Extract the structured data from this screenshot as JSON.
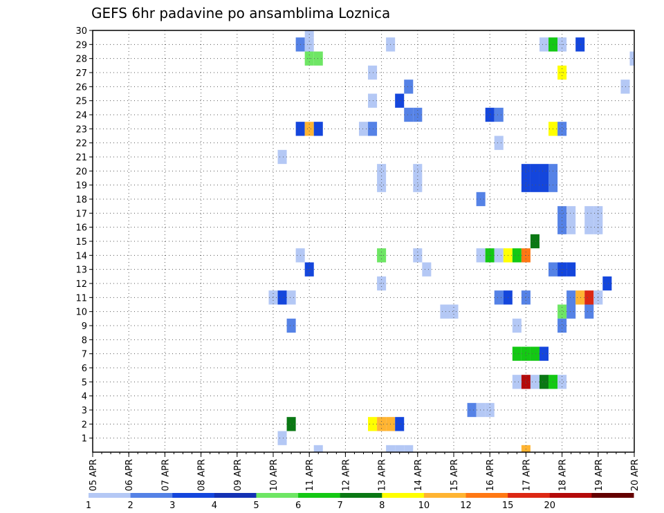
{
  "chart_data": {
    "type": "heatmap",
    "title": "GEFS 6hr padavine po ansamblima Loznica",
    "xlabel": "",
    "ylabel": "",
    "x_tick_labels": [
      "05 APR",
      "06 APR",
      "07 APR",
      "08 APR",
      "09 APR",
      "10 APR",
      "11 APR",
      "12 APR",
      "13 APR",
      "14 APR",
      "15 APR",
      "16 APR",
      "17 APR",
      "18 APR",
      "19 APR",
      "20 APR"
    ],
    "y_tick_labels": [
      "1",
      "2",
      "3",
      "4",
      "5",
      "6",
      "7",
      "8",
      "9",
      "10",
      "11",
      "12",
      "13",
      "14",
      "15",
      "16",
      "17",
      "18",
      "19",
      "20",
      "21",
      "22",
      "23",
      "24",
      "25",
      "26",
      "27",
      "28",
      "29",
      "30"
    ],
    "xlim": [
      "05 APR",
      "20 APR"
    ],
    "ylim": [
      0,
      30
    ],
    "time_step_hours": 6,
    "grid": true,
    "colorbar": {
      "placement": "bottom",
      "labels": [
        "1",
        "2",
        "3",
        "4",
        "5",
        "6",
        "7",
        "8",
        "10",
        "12",
        "15",
        "20"
      ],
      "colors": [
        "#b4c8f5",
        "#5582e6",
        "#1446dc",
        "#1432b4",
        "#6ee664",
        "#14c814",
        "#0a7814",
        "#ffff00",
        "#ffb432",
        "#ff7814",
        "#dc2814",
        "#b40a0a",
        "#640000"
      ]
    },
    "cells_ymd_h_member_value": [
      [
        11,
        0,
        30,
        1
      ],
      [
        20,
        6,
        30,
        1
      ],
      [
        10,
        18,
        29,
        2
      ],
      [
        11,
        0,
        29,
        1
      ],
      [
        13,
        6,
        29,
        1
      ],
      [
        17,
        12,
        29,
        1
      ],
      [
        17,
        18,
        29,
        6
      ],
      [
        18,
        0,
        29,
        1
      ],
      [
        18,
        12,
        29,
        3
      ],
      [
        11,
        0,
        28,
        5
      ],
      [
        11,
        6,
        28,
        5
      ],
      [
        20,
        0,
        28,
        1
      ],
      [
        20,
        18,
        28,
        1
      ],
      [
        12,
        18,
        27,
        1
      ],
      [
        18,
        0,
        27,
        8
      ],
      [
        13,
        18,
        26,
        2
      ],
      [
        19,
        18,
        26,
        1
      ],
      [
        12,
        18,
        25,
        1
      ],
      [
        13,
        12,
        25,
        3
      ],
      [
        13,
        18,
        24,
        2
      ],
      [
        14,
        0,
        24,
        2
      ],
      [
        16,
        0,
        24,
        3
      ],
      [
        16,
        6,
        24,
        2
      ],
      [
        10,
        18,
        23,
        3
      ],
      [
        11,
        0,
        23,
        10
      ],
      [
        11,
        6,
        23,
        3
      ],
      [
        12,
        12,
        23,
        1
      ],
      [
        12,
        18,
        23,
        2
      ],
      [
        17,
        18,
        23,
        8
      ],
      [
        18,
        0,
        23,
        2
      ],
      [
        16,
        6,
        22,
        1
      ],
      [
        20,
        6,
        22,
        2
      ],
      [
        10,
        6,
        21,
        1
      ],
      [
        13,
        0,
        20,
        1
      ],
      [
        14,
        0,
        20,
        1
      ],
      [
        17,
        0,
        20,
        3
      ],
      [
        17,
        6,
        20,
        3
      ],
      [
        17,
        12,
        20,
        3
      ],
      [
        17,
        18,
        20,
        2
      ],
      [
        13,
        0,
        19,
        1
      ],
      [
        14,
        0,
        19,
        1
      ],
      [
        17,
        0,
        19,
        3
      ],
      [
        17,
        6,
        19,
        3
      ],
      [
        17,
        12,
        19,
        3
      ],
      [
        17,
        18,
        19,
        2
      ],
      [
        15,
        18,
        18,
        2
      ],
      [
        18,
        0,
        17,
        2
      ],
      [
        18,
        6,
        17,
        1
      ],
      [
        18,
        18,
        17,
        1
      ],
      [
        19,
        0,
        17,
        1
      ],
      [
        18,
        0,
        16,
        2
      ],
      [
        18,
        6,
        16,
        1
      ],
      [
        18,
        18,
        16,
        1
      ],
      [
        19,
        0,
        16,
        1
      ],
      [
        17,
        6,
        15,
        7
      ],
      [
        10,
        18,
        14,
        1
      ],
      [
        13,
        0,
        14,
        5
      ],
      [
        14,
        0,
        14,
        1
      ],
      [
        15,
        18,
        14,
        1
      ],
      [
        16,
        0,
        14,
        6
      ],
      [
        16,
        6,
        14,
        1
      ],
      [
        16,
        12,
        14,
        8
      ],
      [
        16,
        18,
        14,
        6
      ],
      [
        17,
        0,
        14,
        12
      ],
      [
        11,
        0,
        13,
        3
      ],
      [
        14,
        6,
        13,
        1
      ],
      [
        17,
        18,
        13,
        2
      ],
      [
        18,
        0,
        13,
        3
      ],
      [
        18,
        6,
        13,
        3
      ],
      [
        13,
        0,
        12,
        1
      ],
      [
        19,
        6,
        12,
        3
      ],
      [
        20,
        6,
        12,
        1
      ],
      [
        20,
        12,
        12,
        12
      ],
      [
        10,
        0,
        11,
        1
      ],
      [
        10,
        6,
        11,
        3
      ],
      [
        10,
        12,
        11,
        1
      ],
      [
        16,
        6,
        11,
        2
      ],
      [
        16,
        12,
        11,
        3
      ],
      [
        17,
        0,
        11,
        2
      ],
      [
        18,
        6,
        11,
        2
      ],
      [
        18,
        12,
        11,
        10
      ],
      [
        18,
        18,
        11,
        15
      ],
      [
        19,
        0,
        11,
        1
      ],
      [
        14,
        18,
        10,
        1
      ],
      [
        15,
        0,
        10,
        1
      ],
      [
        18,
        0,
        10,
        5
      ],
      [
        18,
        6,
        10,
        2
      ],
      [
        18,
        18,
        10,
        2
      ],
      [
        10,
        12,
        9,
        2
      ],
      [
        16,
        18,
        9,
        1
      ],
      [
        18,
        0,
        9,
        2
      ],
      [
        16,
        18,
        7,
        6
      ],
      [
        17,
        0,
        7,
        6
      ],
      [
        17,
        6,
        7,
        6
      ],
      [
        17,
        12,
        7,
        3
      ],
      [
        20,
        6,
        7,
        1
      ],
      [
        20,
        12,
        7,
        2
      ],
      [
        16,
        18,
        5,
        1
      ],
      [
        17,
        0,
        5,
        20
      ],
      [
        17,
        6,
        5,
        1
      ],
      [
        17,
        12,
        5,
        7
      ],
      [
        17,
        18,
        5,
        6
      ],
      [
        18,
        0,
        5,
        1
      ],
      [
        15,
        12,
        3,
        2
      ],
      [
        15,
        18,
        3,
        1
      ],
      [
        16,
        0,
        3,
        1
      ],
      [
        10,
        12,
        2,
        7
      ],
      [
        12,
        18,
        2,
        8
      ],
      [
        13,
        0,
        2,
        10
      ],
      [
        13,
        6,
        2,
        10
      ],
      [
        13,
        12,
        2,
        3
      ],
      [
        10,
        6,
        1,
        1
      ],
      [
        11,
        6,
        0,
        1
      ],
      [
        13,
        6,
        0,
        1
      ],
      [
        13,
        12,
        0,
        1
      ],
      [
        13,
        18,
        0,
        1
      ],
      [
        17,
        0,
        0,
        10
      ]
    ]
  }
}
